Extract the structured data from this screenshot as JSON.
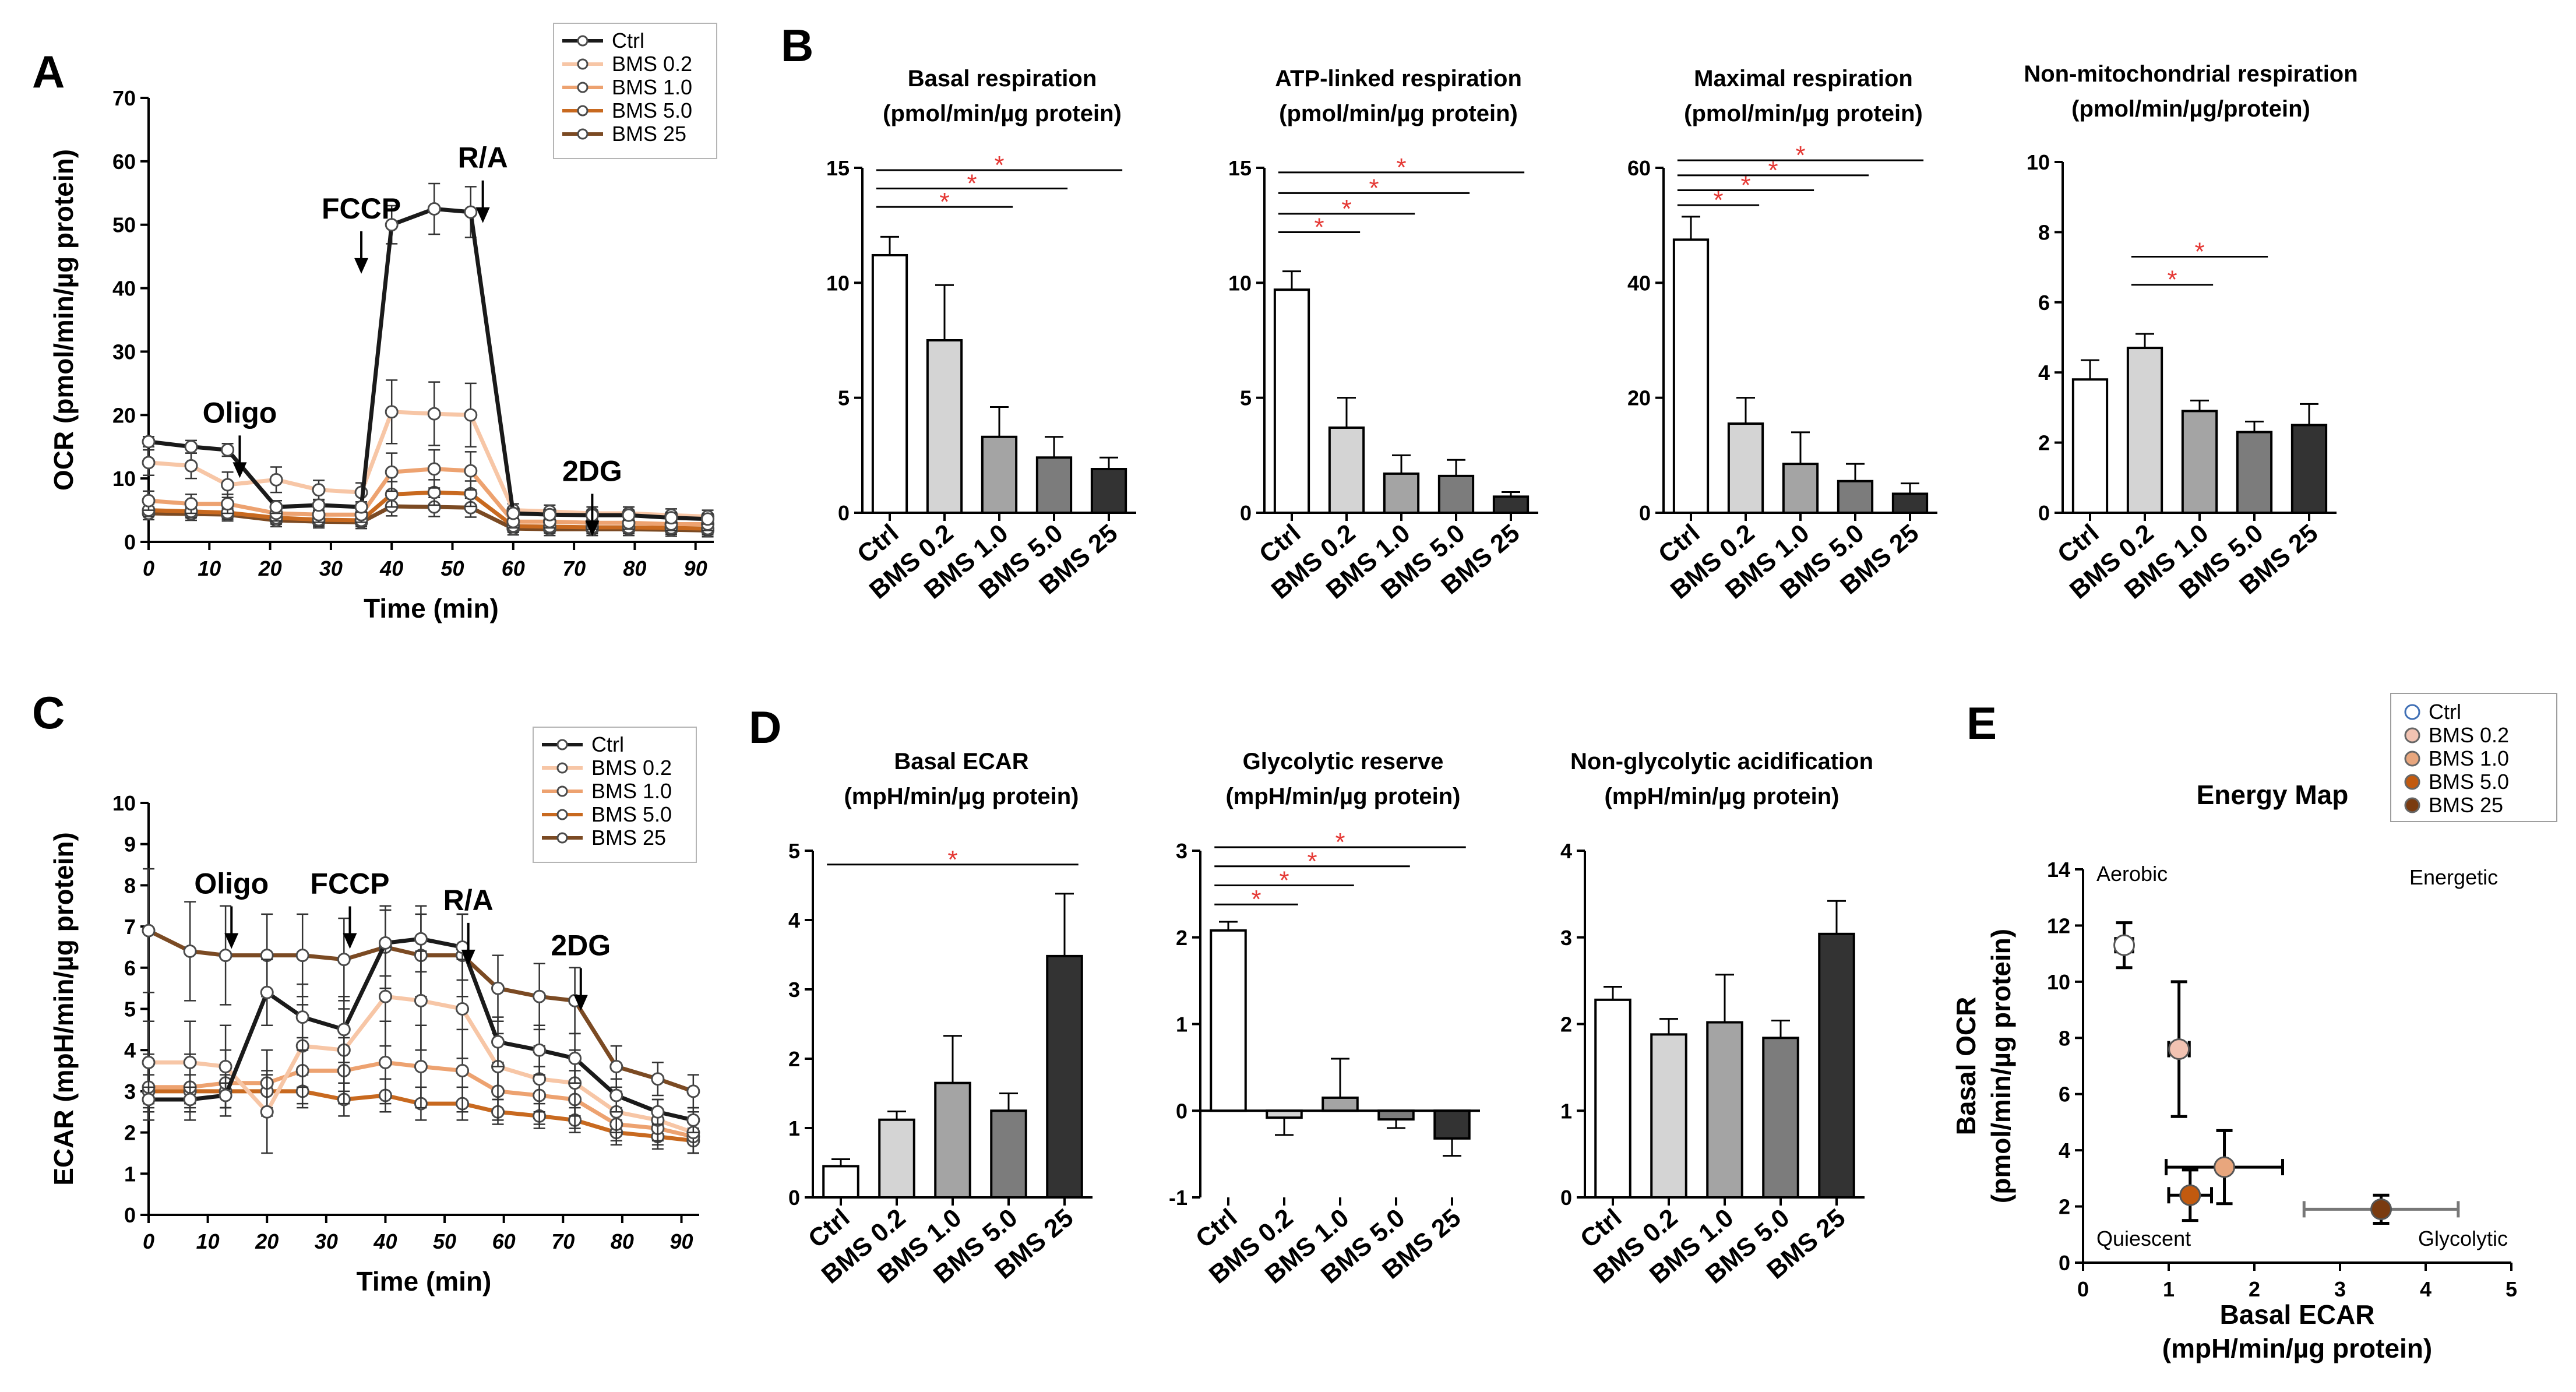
{
  "panels": [
    {
      "id": "OCR_time",
      "label": "A",
      "type": "line",
      "xlabel": "Time (min)",
      "ylabel": "OCR (pmol/min/µg protein)",
      "xlim": [
        0,
        93
      ],
      "ylim": [
        0,
        70
      ],
      "xticks": [
        0,
        10,
        20,
        30,
        40,
        50,
        60,
        70,
        80,
        90
      ],
      "yticks": [
        0,
        10,
        20,
        30,
        40,
        50,
        60,
        70
      ],
      "x": [
        0,
        7,
        13,
        21,
        28,
        35,
        40,
        47,
        53,
        60,
        66,
        73,
        79,
        86,
        92
      ],
      "annotations": [
        {
          "text": "Oligo",
          "x": 15,
          "y": 18.8
        },
        {
          "text": "FCCP",
          "x": 35,
          "y": 51
        },
        {
          "text": "R/A",
          "x": 55,
          "y": 59
        },
        {
          "text": "2DG",
          "x": 73,
          "y": 9.6
        }
      ],
      "legend": [
        "Ctrl",
        "BMS 0.2",
        "BMS 1.0",
        "BMS 5.0",
        "BMS 25"
      ],
      "series": [
        {
          "name": "Ctrl",
          "color": "#1a1a1a",
          "values": [
            15.8,
            15,
            14.5,
            5.5,
            5.8,
            5.5,
            50,
            52.5,
            52,
            4.5,
            4.3,
            4.2,
            4.2,
            3.8,
            3.6
          ],
          "err": [
            0.8,
            1,
            1,
            1,
            0.8,
            0.8,
            3,
            4,
            4,
            0.8,
            0.8,
            0.8,
            0.8,
            0.8,
            0.8
          ]
        },
        {
          "name": "BMS 0.2",
          "color": "#f7c6a6",
          "values": [
            12.5,
            12,
            9,
            9.8,
            8.2,
            7.8,
            20.5,
            20.2,
            20,
            5,
            4.8,
            4.5,
            4.5,
            4.2,
            4
          ],
          "err": [
            2,
            2,
            2,
            2,
            1.5,
            1.5,
            5,
            5,
            5,
            1,
            1,
            1,
            1,
            1,
            1
          ]
        },
        {
          "name": "BMS 1.0",
          "color": "#eda270",
          "values": [
            6.5,
            6,
            6,
            4.5,
            4.3,
            4.3,
            11,
            11.5,
            11.2,
            3.2,
            3.2,
            3,
            3,
            2.8,
            2.8
          ],
          "err": [
            1.5,
            1.5,
            1.5,
            1.2,
            1.2,
            1.2,
            3,
            3,
            3,
            1,
            1,
            1,
            1,
            1,
            1
          ]
        },
        {
          "name": "BMS 5.0",
          "color": "#c8691f",
          "values": [
            5,
            4.8,
            4.6,
            3.8,
            3.5,
            3.4,
            7.5,
            7.8,
            7.6,
            2.5,
            2.4,
            2.3,
            2.3,
            2.2,
            2.1
          ],
          "err": [
            1,
            1,
            1,
            1,
            1,
            1,
            2,
            2,
            2,
            1,
            1,
            1,
            1,
            1,
            1
          ]
        },
        {
          "name": "BMS 25",
          "color": "#7b4a23",
          "values": [
            4.5,
            4.4,
            4.3,
            3.4,
            3.2,
            3.1,
            5.6,
            5.5,
            5.4,
            2.1,
            2,
            2,
            2,
            1.9,
            1.8
          ],
          "err": [
            1,
            1,
            1,
            1,
            1,
            1,
            1.5,
            1.5,
            1.5,
            1,
            1,
            1,
            1,
            1,
            1
          ]
        }
      ]
    },
    {
      "id": "ECAR_time",
      "label": "C",
      "type": "line",
      "xlabel": "Time (min)",
      "ylabel": "ECAR (mpH/min/µg protein)",
      "xlim": [
        0,
        93
      ],
      "ylim": [
        0,
        10
      ],
      "xticks": [
        0,
        10,
        20,
        30,
        40,
        50,
        60,
        70,
        80,
        90
      ],
      "yticks": [
        0,
        1,
        2,
        3,
        4,
        5,
        6,
        7,
        8,
        9,
        10
      ],
      "x": [
        0,
        7,
        13,
        20,
        26,
        33,
        40,
        46,
        53,
        59,
        66,
        72,
        79,
        86,
        92
      ],
      "annotations": [
        {
          "text": "Oligo",
          "x": 14,
          "y": 7.8
        },
        {
          "text": "FCCP",
          "x": 34,
          "y": 7.8
        },
        {
          "text": "R/A",
          "x": 54,
          "y": 7.4
        },
        {
          "text": "2DG",
          "x": 73,
          "y": 6.3
        }
      ],
      "legend": [
        "Ctrl",
        "BMS 0.2",
        "BMS 1.0",
        "BMS 5.0",
        "BMS 25"
      ],
      "series": [
        {
          "name": "Ctrl",
          "color": "#1a1a1a",
          "values": [
            2.8,
            2.8,
            2.9,
            5.4,
            4.8,
            4.5,
            6.6,
            6.7,
            6.5,
            4.2,
            4,
            3.8,
            2.9,
            2.5,
            2.3
          ],
          "err": [
            0.3,
            0.3,
            0.3,
            0.8,
            0.8,
            0.8,
            0.8,
            0.8,
            0.8,
            0.6,
            0.6,
            0.6,
            0.4,
            0.3,
            0.3
          ]
        },
        {
          "name": "BMS 0.2",
          "color": "#f7c6a6",
          "values": [
            3.7,
            3.7,
            3.6,
            2.5,
            4.1,
            4,
            5.3,
            5.2,
            5,
            3.6,
            3.3,
            3.2,
            2.5,
            2.3,
            2
          ],
          "err": [
            1,
            1,
            1,
            1,
            1,
            1,
            1.2,
            1.2,
            1.2,
            0.8,
            0.8,
            0.8,
            0.5,
            0.5,
            0.5
          ]
        },
        {
          "name": "BMS 1.0",
          "color": "#eda270",
          "values": [
            3.1,
            3.1,
            3.2,
            3.2,
            3.5,
            3.5,
            3.7,
            3.6,
            3.5,
            3,
            2.9,
            2.8,
            2.2,
            2.1,
            1.9
          ],
          "err": [
            0.8,
            0.8,
            0.8,
            0.8,
            0.8,
            0.8,
            1,
            1,
            1,
            0.7,
            0.7,
            0.7,
            0.4,
            0.4,
            0.4
          ]
        },
        {
          "name": "BMS 5.0",
          "color": "#c8691f",
          "values": [
            3,
            3,
            3,
            3,
            3,
            2.8,
            2.9,
            2.7,
            2.7,
            2.5,
            2.4,
            2.3,
            2,
            1.9,
            1.8
          ],
          "err": [
            0.4,
            0.4,
            0.4,
            0.4,
            0.4,
            0.4,
            0.4,
            0.4,
            0.4,
            0.3,
            0.3,
            0.3,
            0.3,
            0.3,
            0.3
          ]
        },
        {
          "name": "BMS 25",
          "color": "#7b4a23",
          "values": [
            6.9,
            6.4,
            6.3,
            6.3,
            6.3,
            6.2,
            6.5,
            6.3,
            6.3,
            5.5,
            5.3,
            5.2,
            3.6,
            3.3,
            3
          ],
          "err": [
            1.5,
            1.2,
            1.2,
            1,
            1,
            1,
            1,
            1,
            1,
            0.8,
            0.8,
            0.8,
            0.5,
            0.4,
            0.4
          ]
        }
      ]
    },
    {
      "id": "basal_resp",
      "label": "B",
      "type": "bar",
      "title": [
        "Basal respiration",
        "(pmol/min/µg protein)"
      ],
      "ylim": [
        0,
        15
      ],
      "yticks": [
        0,
        5,
        10,
        15
      ],
      "categories": [
        "Ctrl",
        "BMS 0.2",
        "BMS 1.0",
        "BMS 5.0",
        "BMS 25"
      ],
      "values": [
        11.2,
        7.5,
        3.3,
        2.4,
        1.9
      ],
      "err": [
        0.8,
        2.4,
        1.3,
        0.9,
        0.5
      ],
      "sig": [
        {
          "to": 2,
          "y": 13.3
        },
        {
          "to": 3,
          "y": 14.1
        },
        {
          "to": 4,
          "y": 14.9
        }
      ]
    },
    {
      "id": "atp_resp",
      "label": "",
      "type": "bar",
      "title": [
        "ATP-linked respiration",
        "(pmol/min/µg protein)"
      ],
      "ylim": [
        0,
        15
      ],
      "yticks": [
        0,
        5,
        10,
        15
      ],
      "categories": [
        "Ctrl",
        "BMS 0.2",
        "BMS 1.0",
        "BMS 5.0",
        "BMS 25"
      ],
      "values": [
        9.7,
        3.7,
        1.7,
        1.6,
        0.7
      ],
      "err": [
        0.8,
        1.3,
        0.8,
        0.7,
        0.2
      ],
      "sig": [
        {
          "to": 1,
          "y": 12.2
        },
        {
          "to": 2,
          "y": 13.0
        },
        {
          "to": 3,
          "y": 13.9
        },
        {
          "to": 4,
          "y": 14.8
        }
      ]
    },
    {
      "id": "max_resp",
      "label": "",
      "type": "bar",
      "title": [
        "Maximal respiration",
        "(pmol/min/µg protein)"
      ],
      "ylim": [
        0,
        60
      ],
      "yticks": [
        0,
        20,
        40,
        60
      ],
      "categories": [
        "Ctrl",
        "BMS 0.2",
        "BMS 1.0",
        "BMS 5.0",
        "BMS 25"
      ],
      "values": [
        47.5,
        15.5,
        8.5,
        5.5,
        3.3
      ],
      "err": [
        4,
        4.5,
        5.5,
        3,
        1.8
      ],
      "sig": [
        {
          "to": 1,
          "y": 53.5
        },
        {
          "to": 2,
          "y": 56.1
        },
        {
          "to": 3,
          "y": 58.7
        },
        {
          "to": 4,
          "y": 61.3
        }
      ]
    },
    {
      "id": "nonmito_resp",
      "label": "",
      "type": "bar",
      "title": [
        "Non-mitochondrial respiration",
        "(pmol/min/µg/protein)"
      ],
      "ylim": [
        0,
        10
      ],
      "yticks": [
        0,
        2,
        4,
        6,
        8,
        10
      ],
      "categories": [
        "Ctrl",
        "BMS 0.2",
        "BMS 1.0",
        "BMS 5.0",
        "BMS 25"
      ],
      "values": [
        3.8,
        4.7,
        2.9,
        2.3,
        2.5
      ],
      "err": [
        0.55,
        0.4,
        0.3,
        0.3,
        0.6
      ],
      "sig": [
        {
          "from": 1,
          "to": 2,
          "y": 6.5
        },
        {
          "from": 1,
          "to": 3,
          "y": 7.3
        }
      ]
    },
    {
      "id": "basal_ecar",
      "label": "D",
      "type": "bar",
      "title": [
        "Basal ECAR",
        "(mpH/min/µg protein)"
      ],
      "ylim": [
        0,
        5
      ],
      "yticks": [
        0,
        1,
        2,
        3,
        4,
        5
      ],
      "categories": [
        "Ctrl",
        "BMS 0.2",
        "BMS 1.0",
        "BMS 5.0",
        "BMS 25"
      ],
      "values": [
        0.45,
        1.12,
        1.65,
        1.25,
        3.48
      ],
      "err": [
        0.1,
        0.12,
        0.68,
        0.25,
        0.9
      ],
      "sig": [
        {
          "to": 4,
          "y": 4.8
        }
      ]
    },
    {
      "id": "glyco_reserve",
      "label": "",
      "type": "bar",
      "title": [
        "Glycolytic reserve",
        "(mpH/min/µg protein)"
      ],
      "ylim": [
        -1,
        3
      ],
      "yticks": [
        -1,
        0,
        1,
        2,
        3
      ],
      "categories": [
        "Ctrl",
        "BMS 0.2",
        "BMS 1.0",
        "BMS 5.0",
        "BMS 25"
      ],
      "values": [
        2.08,
        -0.08,
        0.15,
        -0.1,
        -0.32
      ],
      "err": [
        0.1,
        0.2,
        0.45,
        0.1,
        0.2
      ],
      "sig": [
        {
          "to": 1,
          "y": 2.38
        },
        {
          "to": 2,
          "y": 2.6
        },
        {
          "to": 3,
          "y": 2.82
        },
        {
          "to": 4,
          "y": 3.04
        }
      ]
    },
    {
      "id": "nonglyco_acid",
      "label": "",
      "type": "bar",
      "title": [
        "Non-glycolytic acidification",
        "(mpH/min/µg protein)"
      ],
      "ylim": [
        0,
        4
      ],
      "yticks": [
        0,
        1,
        2,
        3,
        4
      ],
      "categories": [
        "Ctrl",
        "BMS 0.2",
        "BMS 1.0",
        "BMS 5.0",
        "BMS 25"
      ],
      "values": [
        2.28,
        1.88,
        2.02,
        1.84,
        3.04
      ],
      "err": [
        0.15,
        0.18,
        0.55,
        0.2,
        0.38
      ],
      "sig": []
    },
    {
      "id": "energy_map",
      "label": "E",
      "type": "scatter",
      "title": "Energy Map",
      "xlabel": [
        "Basal ECAR",
        "(mpH/min/µg protein)"
      ],
      "ylabel": [
        "Basal OCR",
        "(pmol/min/µg protein)"
      ],
      "xlim": [
        0,
        5
      ],
      "ylim": [
        0,
        14
      ],
      "xticks": [
        0,
        1,
        2,
        3,
        4,
        5
      ],
      "yticks": [
        0,
        2,
        4,
        6,
        8,
        10,
        12,
        14
      ],
      "quadrants": {
        "top_left": "Aerobic",
        "top_right": "Energetic",
        "bottom_left": "Quiescent",
        "bottom_right": "Glycolytic"
      },
      "legend": [
        "Ctrl",
        "BMS 0.2",
        "BMS 1.0",
        "BMS 5.0",
        "BMS 25"
      ],
      "points": [
        {
          "name": "Ctrl",
          "color": "#ffffff",
          "x": 0.48,
          "y": 11.3,
          "xerr": 0.1,
          "yerr": 0.8
        },
        {
          "name": "BMS 0.2",
          "color": "#f2c3b2",
          "x": 1.12,
          "y": 7.6,
          "xerr": 0.12,
          "yerr": 2.4
        },
        {
          "name": "BMS 1.0",
          "color": "#e8a67d",
          "x": 1.65,
          "y": 3.4,
          "xerr": 0.68,
          "yerr": 1.3
        },
        {
          "name": "BMS 5.0",
          "color": "#c25a0f",
          "x": 1.25,
          "y": 2.4,
          "xerr": 0.25,
          "yerr": 0.9
        },
        {
          "name": "BMS 25",
          "color": "#7a3b10",
          "x": 3.48,
          "y": 1.9,
          "xerr": 0.9,
          "yerr": 0.5
        }
      ]
    }
  ],
  "bar_colors": [
    "#ffffff",
    "#d4d4d4",
    "#a4a4a4",
    "#7c7c7c",
    "#333333"
  ]
}
